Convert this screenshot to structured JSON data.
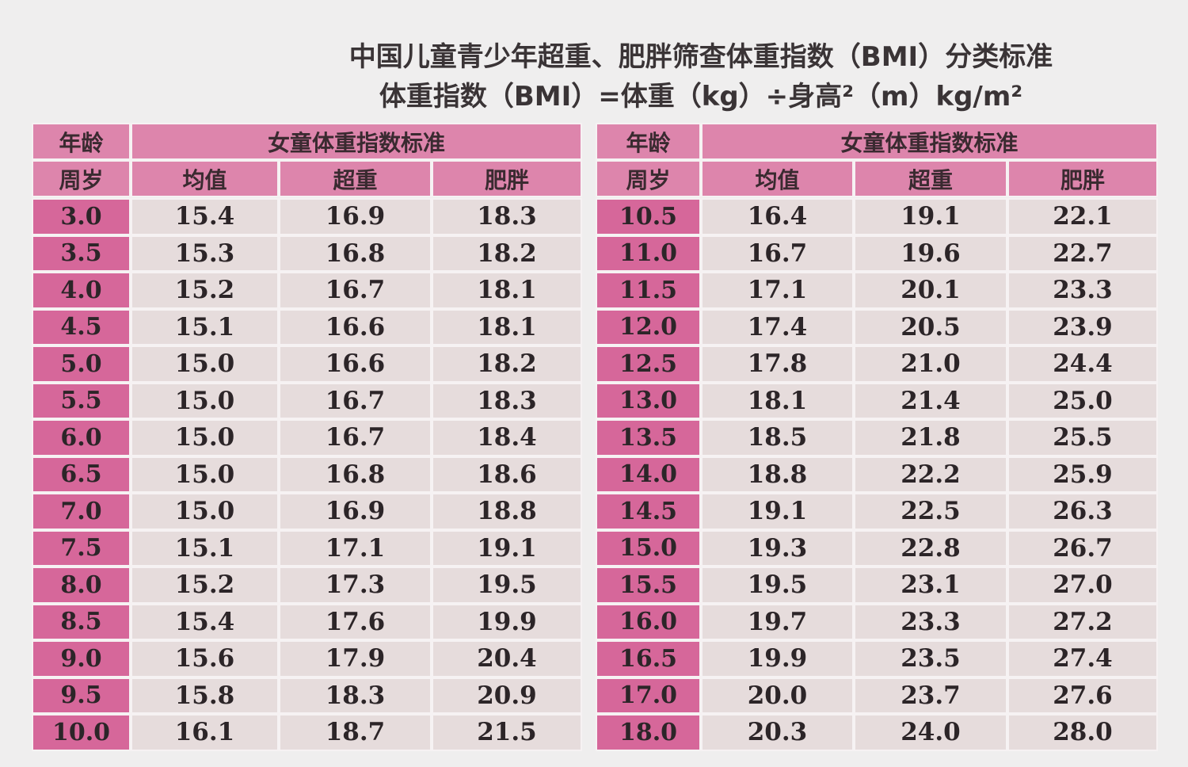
{
  "header": {
    "title": "中国儿童青少年超重、肥胖筛查体重指数（BMI）分类标准",
    "formula": "体重指数（BMI）=体重（kg）÷身高²（m）kg/m²"
  },
  "tables": [
    {
      "age_label": "年龄",
      "age_unit": "周岁",
      "group": "女童体重指数标准",
      "columns": [
        "均值",
        "超重",
        "肥胖"
      ],
      "rows": [
        [
          "3.0",
          "15.4",
          "16.9",
          "18.3"
        ],
        [
          "3.5",
          "15.3",
          "16.8",
          "18.2"
        ],
        [
          "4.0",
          "15.2",
          "16.7",
          "18.1"
        ],
        [
          "4.5",
          "15.1",
          "16.6",
          "18.1"
        ],
        [
          "5.0",
          "15.0",
          "16.6",
          "18.2"
        ],
        [
          "5.5",
          "15.0",
          "16.7",
          "18.3"
        ],
        [
          "6.0",
          "15.0",
          "16.7",
          "18.4"
        ],
        [
          "6.5",
          "15.0",
          "16.8",
          "18.6"
        ],
        [
          "7.0",
          "15.0",
          "16.9",
          "18.8"
        ],
        [
          "7.5",
          "15.1",
          "17.1",
          "19.1"
        ],
        [
          "8.0",
          "15.2",
          "17.3",
          "19.5"
        ],
        [
          "8.5",
          "15.4",
          "17.6",
          "19.9"
        ],
        [
          "9.0",
          "15.6",
          "17.9",
          "20.4"
        ],
        [
          "9.5",
          "15.8",
          "18.3",
          "20.9"
        ],
        [
          "10.0",
          "16.1",
          "18.7",
          "21.5"
        ]
      ]
    },
    {
      "age_label": "年龄",
      "age_unit": "周岁",
      "group": "女童体重指数标准",
      "columns": [
        "均值",
        "超重",
        "肥胖"
      ],
      "rows": [
        [
          "10.5",
          "16.4",
          "19.1",
          "22.1"
        ],
        [
          "11.0",
          "16.7",
          "19.6",
          "22.7"
        ],
        [
          "11.5",
          "17.1",
          "20.1",
          "23.3"
        ],
        [
          "12.0",
          "17.4",
          "20.5",
          "23.9"
        ],
        [
          "12.5",
          "17.8",
          "21.0",
          "24.4"
        ],
        [
          "13.0",
          "18.1",
          "21.4",
          "25.0"
        ],
        [
          "13.5",
          "18.5",
          "21.8",
          "25.5"
        ],
        [
          "14.0",
          "18.8",
          "22.2",
          "25.9"
        ],
        [
          "14.5",
          "19.1",
          "22.5",
          "26.3"
        ],
        [
          "15.0",
          "19.3",
          "22.8",
          "26.7"
        ],
        [
          "15.5",
          "19.5",
          "23.1",
          "27.0"
        ],
        [
          "16.0",
          "19.7",
          "23.3",
          "27.2"
        ],
        [
          "16.5",
          "19.9",
          "23.5",
          "27.4"
        ],
        [
          "17.0",
          "20.0",
          "23.7",
          "27.6"
        ],
        [
          "18.0",
          "20.3",
          "24.0",
          "28.0"
        ]
      ]
    }
  ]
}
